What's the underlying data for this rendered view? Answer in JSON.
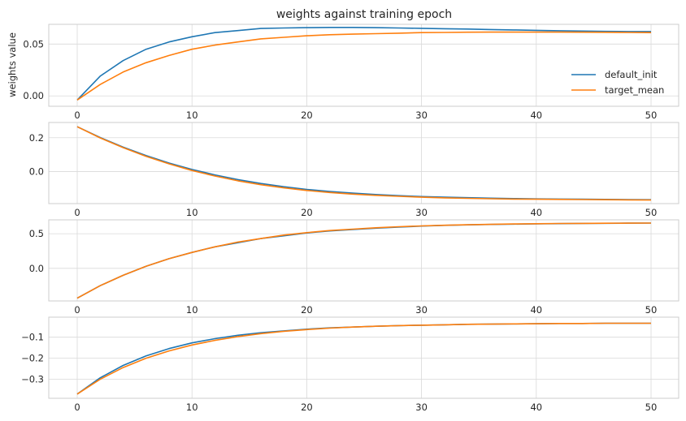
{
  "colors": {
    "default_init": "#1f77b4",
    "target_mean": "#ff7f0e",
    "grid": "#d9d9d9",
    "spine": "#cccccc"
  },
  "chart_data": {
    "type": "line",
    "title": "weights against training epoch",
    "ylabel": "weights value",
    "legend": {
      "placement": "right",
      "entries": [
        "default_init",
        "target_mean"
      ]
    },
    "grid": true,
    "x_range": [
      0,
      50
    ],
    "x_ticks": [
      0,
      10,
      20,
      30,
      40,
      50
    ],
    "subplots": [
      {
        "ylim": [
          -0.01,
          0.069
        ],
        "y_ticks": [
          0.0,
          0.05
        ],
        "y_tick_labels": [
          "0.00",
          "0.05"
        ],
        "series": [
          {
            "name": "default_init",
            "x": [
              0,
              2,
              4,
              6,
              8,
              10,
              12,
              14,
              16,
              18,
              20,
              22,
              24,
              26,
              28,
              30,
              32,
              34,
              36,
              38,
              40,
              42,
              44,
              46,
              48,
              50
            ],
            "values": [
              -0.004,
              0.019,
              0.034,
              0.045,
              0.052,
              0.057,
              0.061,
              0.063,
              0.065,
              0.0655,
              0.0658,
              0.066,
              0.066,
              0.0658,
              0.0655,
              0.0652,
              0.0648,
              0.0645,
              0.064,
              0.0636,
              0.0632,
              0.0628,
              0.0625,
              0.0622,
              0.062,
              0.062
            ]
          },
          {
            "name": "target_mean",
            "x": [
              0,
              2,
              4,
              6,
              8,
              10,
              12,
              14,
              16,
              18,
              20,
              22,
              24,
              26,
              28,
              30,
              32,
              34,
              36,
              38,
              40,
              42,
              44,
              46,
              48,
              50
            ],
            "values": [
              -0.004,
              0.011,
              0.023,
              0.032,
              0.039,
              0.045,
              0.049,
              0.052,
              0.055,
              0.0565,
              0.058,
              0.059,
              0.0595,
              0.06,
              0.0605,
              0.061,
              0.0612,
              0.0614,
              0.0615,
              0.0615,
              0.0615,
              0.0615,
              0.0614,
              0.0613,
              0.0612,
              0.061
            ]
          }
        ]
      },
      {
        "ylim": [
          -0.19,
          0.29
        ],
        "y_ticks": [
          0.0,
          0.2
        ],
        "y_tick_labels": [
          "0.0",
          "0.2"
        ],
        "series": [
          {
            "name": "default_init",
            "x": [
              0,
              2,
              4,
              6,
              8,
              10,
              12,
              14,
              16,
              18,
              20,
              22,
              24,
              26,
              28,
              30,
              32,
              34,
              36,
              38,
              40,
              42,
              44,
              46,
              48,
              50
            ],
            "values": [
              0.265,
              0.201,
              0.144,
              0.094,
              0.05,
              0.012,
              -0.02,
              -0.048,
              -0.071,
              -0.09,
              -0.106,
              -0.118,
              -0.128,
              -0.136,
              -0.143,
              -0.148,
              -0.152,
              -0.155,
              -0.158,
              -0.16,
              -0.162,
              -0.163,
              -0.164,
              -0.165,
              -0.166,
              -0.167
            ]
          },
          {
            "name": "target_mean",
            "x": [
              0,
              2,
              4,
              6,
              8,
              10,
              12,
              14,
              16,
              18,
              20,
              22,
              24,
              26,
              28,
              30,
              32,
              34,
              36,
              38,
              40,
              42,
              44,
              46,
              48,
              50
            ],
            "values": [
              0.265,
              0.199,
              0.141,
              0.09,
              0.045,
              0.006,
              -0.027,
              -0.055,
              -0.078,
              -0.097,
              -0.112,
              -0.124,
              -0.134,
              -0.141,
              -0.147,
              -0.152,
              -0.156,
              -0.159,
              -0.161,
              -0.163,
              -0.164,
              -0.165,
              -0.166,
              -0.167,
              -0.168,
              -0.169
            ]
          }
        ]
      },
      {
        "ylim": [
          -0.47,
          0.7
        ],
        "y_ticks": [
          0.0,
          0.5
        ],
        "y_tick_labels": [
          "0.0",
          "0.5"
        ],
        "series": [
          {
            "name": "default_init",
            "x": [
              0,
              2,
              4,
              6,
              8,
              10,
              12,
              14,
              16,
              18,
              20,
              22,
              24,
              26,
              28,
              30,
              32,
              34,
              36,
              38,
              40,
              42,
              44,
              46,
              48,
              50
            ],
            "values": [
              -0.43,
              -0.25,
              -0.1,
              0.03,
              0.14,
              0.23,
              0.31,
              0.37,
              0.43,
              0.47,
              0.51,
              0.54,
              0.56,
              0.58,
              0.595,
              0.61,
              0.62,
              0.627,
              0.633,
              0.638,
              0.642,
              0.645,
              0.648,
              0.65,
              0.652,
              0.653
            ]
          },
          {
            "name": "target_mean",
            "x": [
              0,
              2,
              4,
              6,
              8,
              10,
              12,
              14,
              16,
              18,
              20,
              22,
              24,
              26,
              28,
              30,
              32,
              34,
              36,
              38,
              40,
              42,
              44,
              46,
              48,
              50
            ],
            "values": [
              -0.43,
              -0.25,
              -0.1,
              0.03,
              0.14,
              0.23,
              0.31,
              0.38,
              0.43,
              0.48,
              0.515,
              0.545,
              0.565,
              0.585,
              0.6,
              0.612,
              0.622,
              0.629,
              0.635,
              0.64,
              0.644,
              0.647,
              0.649,
              0.651,
              0.652,
              0.653
            ]
          }
        ]
      },
      {
        "ylim": [
          -0.39,
          -0.005
        ],
        "y_ticks": [
          -0.1,
          -0.2,
          -0.3
        ],
        "y_tick_labels": [
          "−0.1",
          "−0.2",
          "−0.3"
        ],
        "series": [
          {
            "name": "default_init",
            "x": [
              0,
              2,
              4,
              6,
              8,
              10,
              12,
              14,
              16,
              18,
              20,
              22,
              24,
              26,
              28,
              30,
              32,
              34,
              36,
              38,
              40,
              42,
              44,
              46,
              48,
              50
            ],
            "values": [
              -0.37,
              -0.293,
              -0.234,
              -0.189,
              -0.154,
              -0.127,
              -0.107,
              -0.091,
              -0.079,
              -0.07,
              -0.062,
              -0.056,
              -0.052,
              -0.048,
              -0.045,
              -0.043,
              -0.041,
              -0.039,
              -0.038,
              -0.037,
              -0.036,
              -0.035,
              -0.035,
              -0.034,
              -0.034,
              -0.034
            ]
          },
          {
            "name": "target_mean",
            "x": [
              0,
              2,
              4,
              6,
              8,
              10,
              12,
              14,
              16,
              18,
              20,
              22,
              24,
              26,
              28,
              30,
              32,
              34,
              36,
              38,
              40,
              42,
              44,
              46,
              48,
              50
            ],
            "values": [
              -0.37,
              -0.3,
              -0.244,
              -0.2,
              -0.165,
              -0.137,
              -0.115,
              -0.097,
              -0.083,
              -0.072,
              -0.064,
              -0.057,
              -0.052,
              -0.048,
              -0.045,
              -0.043,
              -0.041,
              -0.039,
              -0.038,
              -0.037,
              -0.036,
              -0.035,
              -0.035,
              -0.034,
              -0.034,
              -0.034
            ]
          }
        ]
      }
    ]
  }
}
